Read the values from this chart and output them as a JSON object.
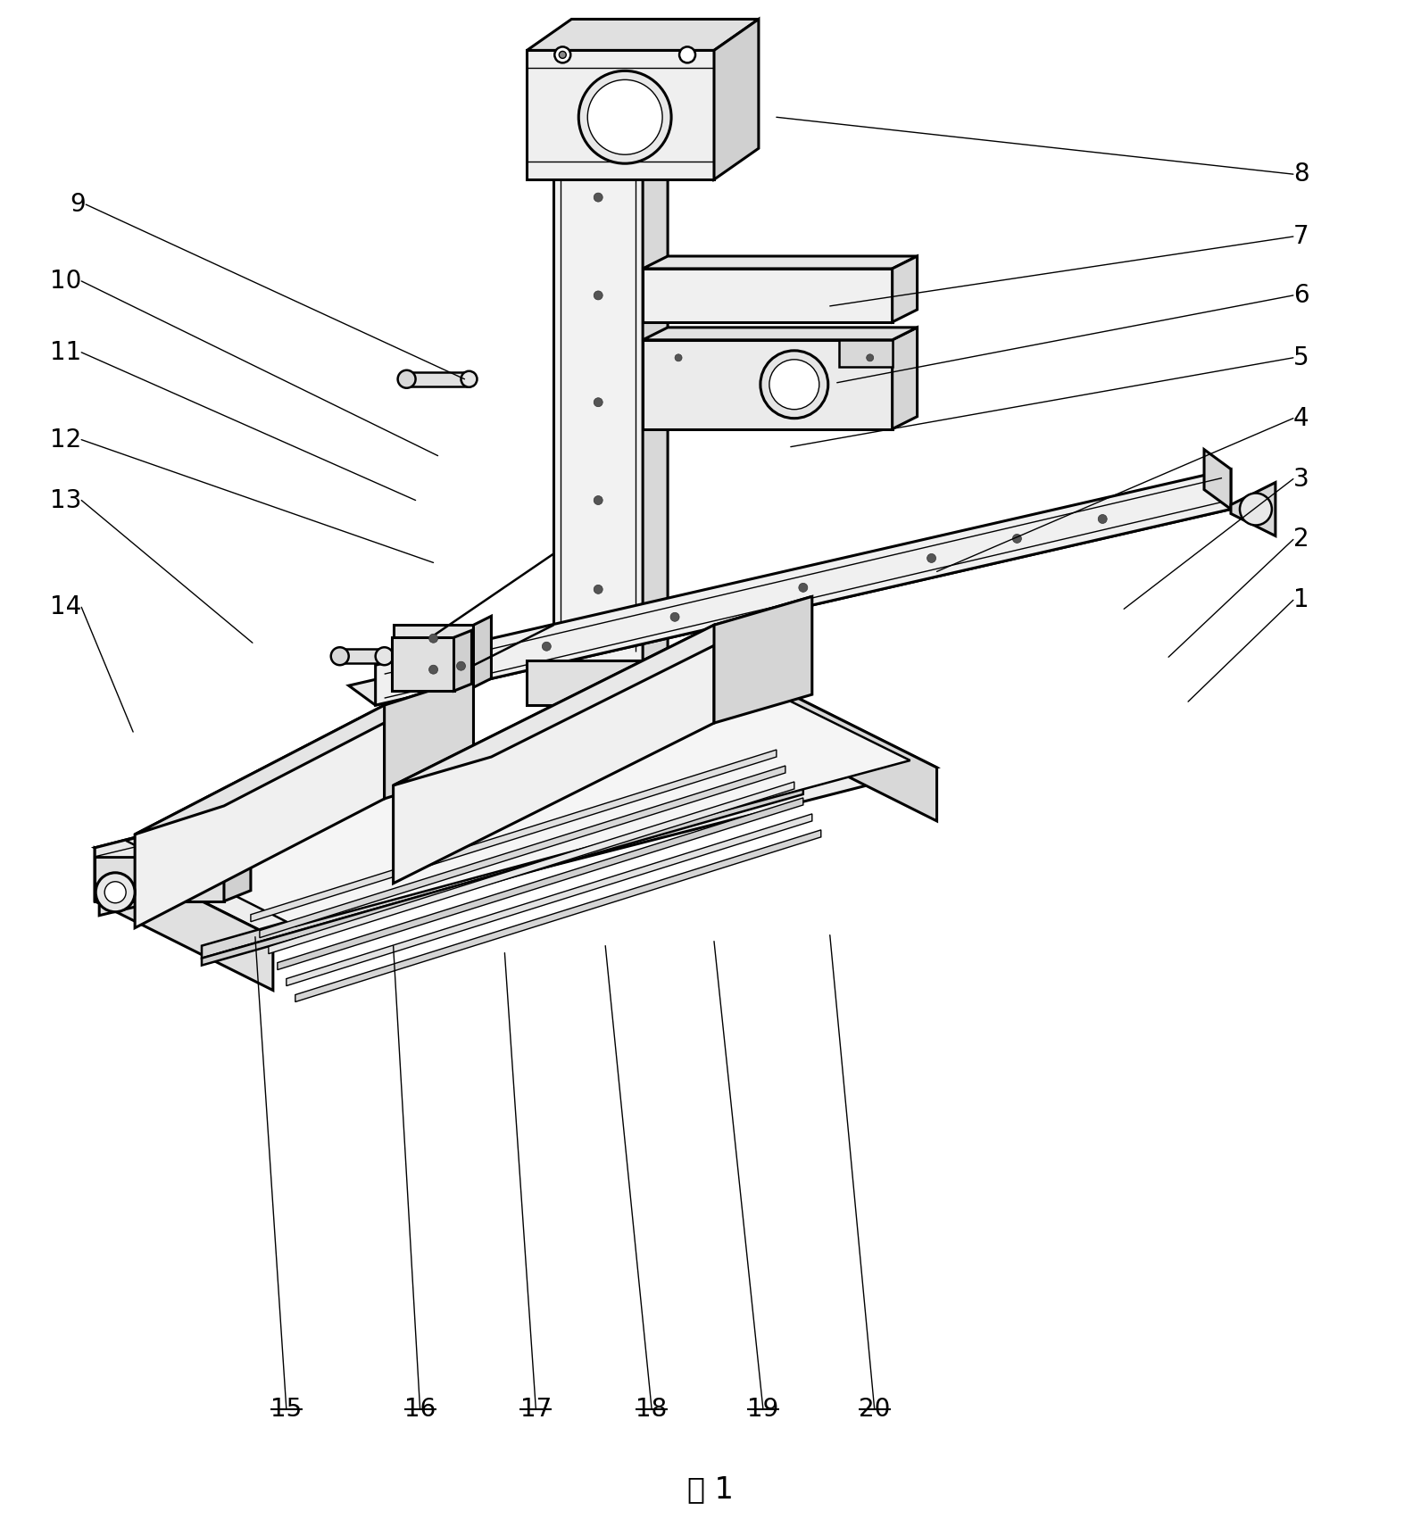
{
  "bg_color": "#ffffff",
  "line_color": "#000000",
  "figsize": [
    15.92,
    17.21
  ],
  "dpi": 100,
  "caption": "图 1",
  "label_fs": 20,
  "lw_main": 1.8,
  "lw_thick": 2.2,
  "lw_thin": 1.0,
  "lw_label": 1.0,
  "leaders": [
    [
      "9",
      95,
      228,
      520,
      424
    ],
    [
      "10",
      90,
      314,
      490,
      510
    ],
    [
      "11",
      90,
      394,
      465,
      560
    ],
    [
      "12",
      90,
      492,
      485,
      630
    ],
    [
      "13",
      90,
      560,
      282,
      720
    ],
    [
      "14",
      90,
      680,
      148,
      820
    ],
    [
      "8",
      1450,
      194,
      870,
      130
    ],
    [
      "7",
      1450,
      264,
      930,
      342
    ],
    [
      "6",
      1450,
      330,
      938,
      428
    ],
    [
      "5",
      1450,
      400,
      886,
      500
    ],
    [
      "4",
      1450,
      468,
      1050,
      640
    ],
    [
      "3",
      1450,
      536,
      1260,
      682
    ],
    [
      "2",
      1450,
      604,
      1310,
      736
    ],
    [
      "1",
      1450,
      672,
      1332,
      786
    ],
    [
      "15",
      320,
      1580,
      285,
      1050
    ],
    [
      "16",
      470,
      1580,
      440,
      1060
    ],
    [
      "17",
      600,
      1580,
      565,
      1068
    ],
    [
      "18",
      730,
      1580,
      678,
      1060
    ],
    [
      "19",
      855,
      1580,
      800,
      1055
    ],
    [
      "20",
      980,
      1580,
      930,
      1048
    ]
  ]
}
